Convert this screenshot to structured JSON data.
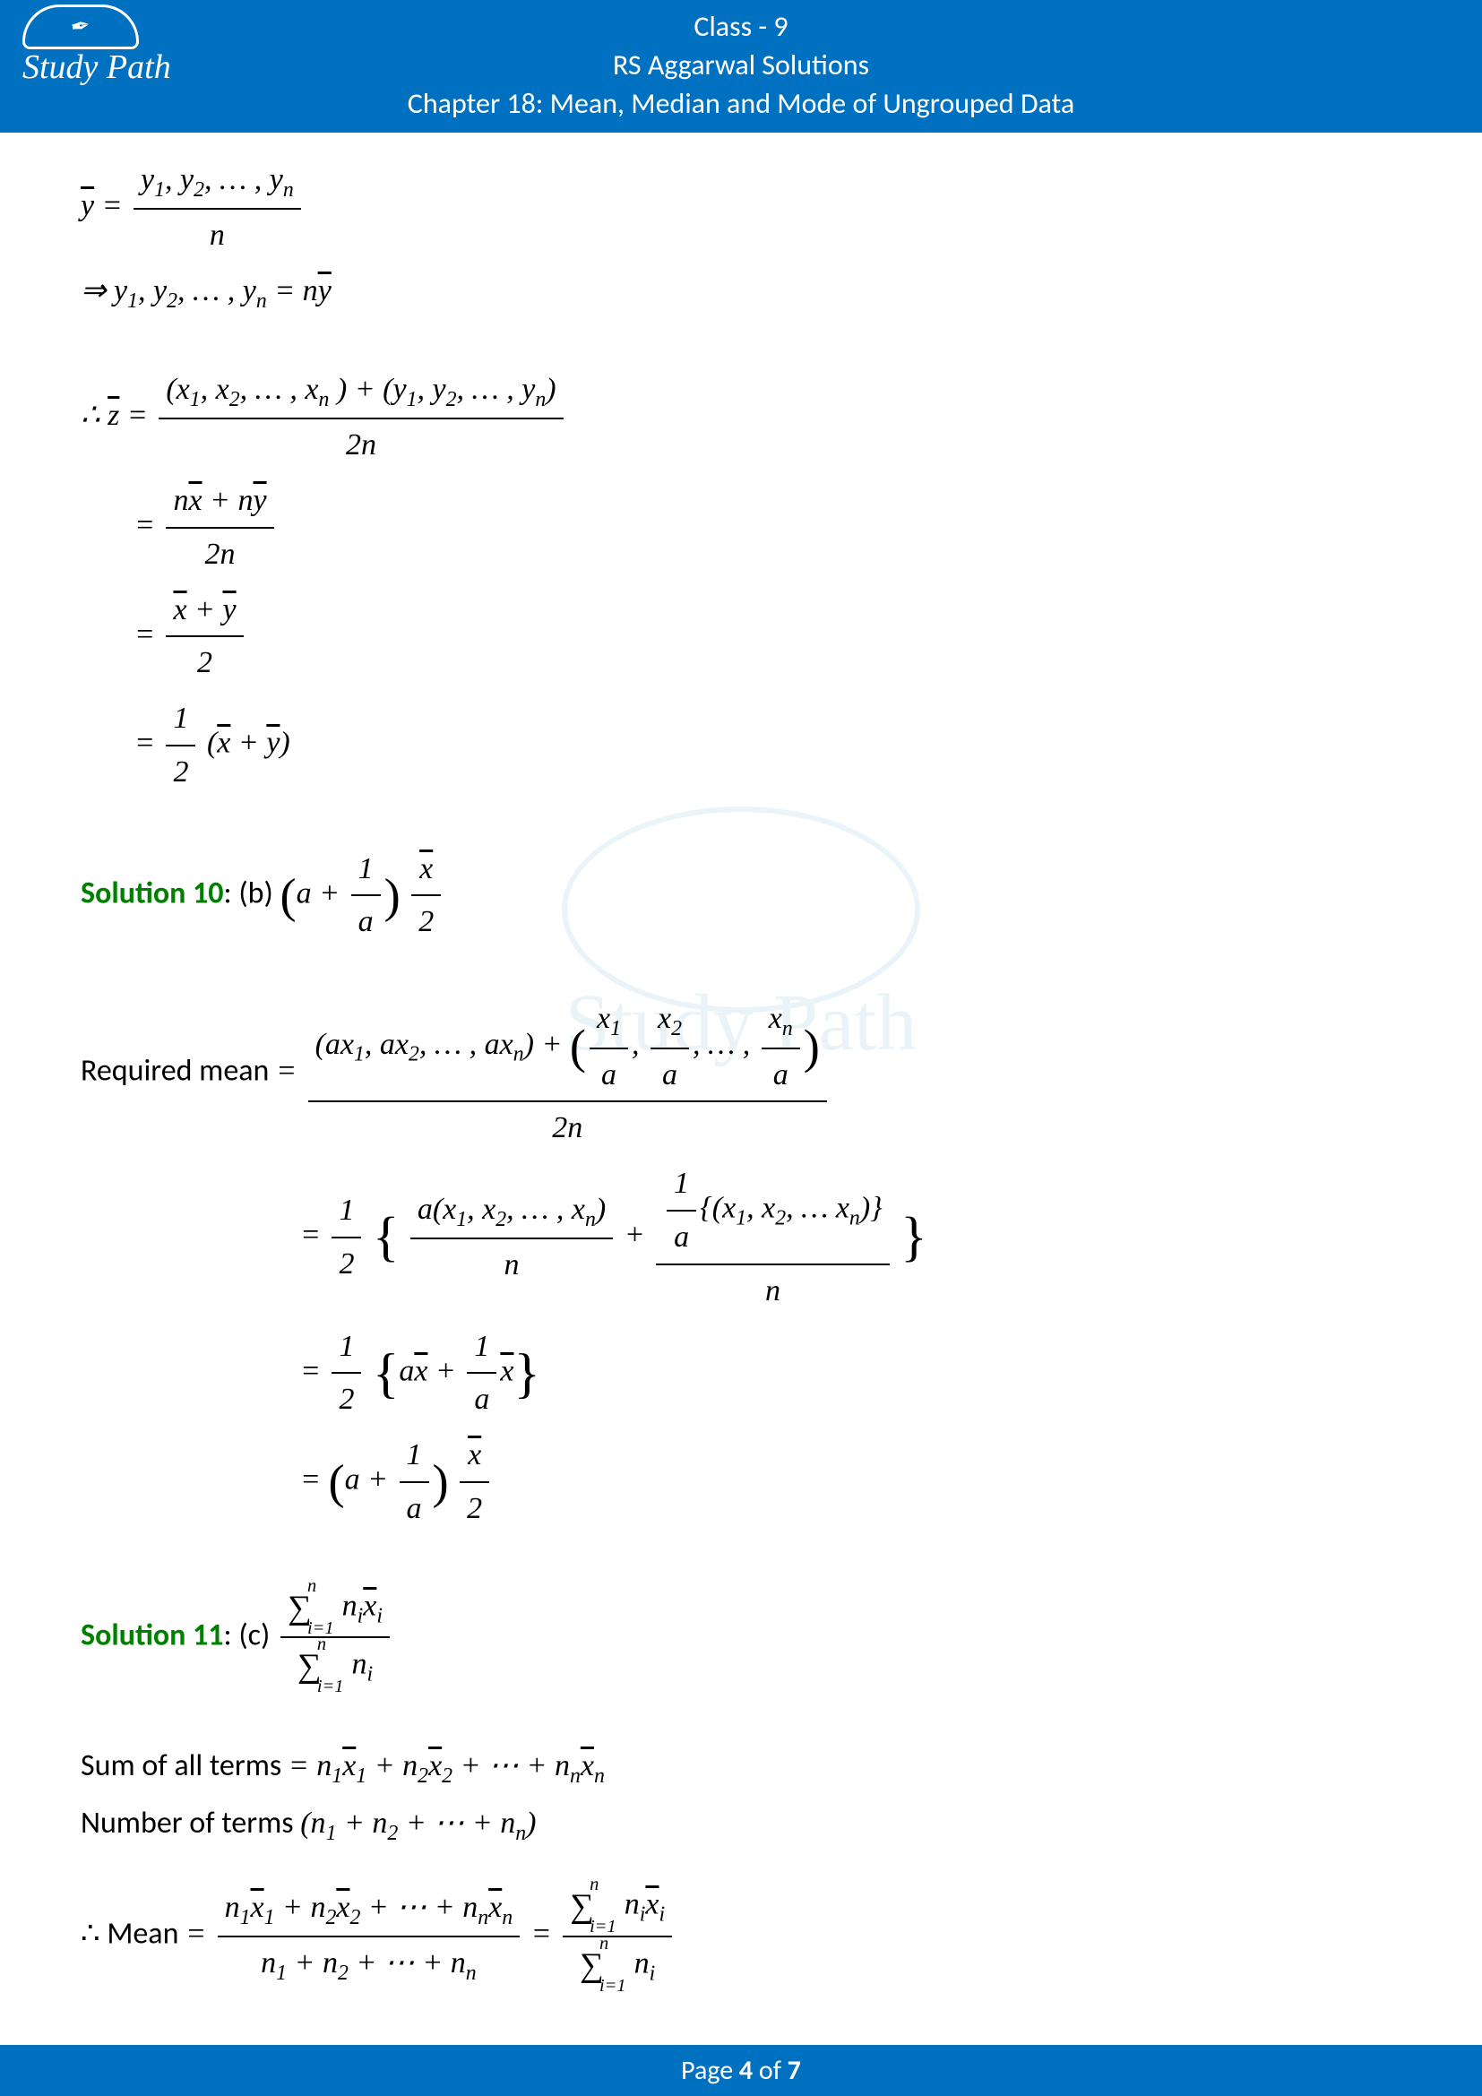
{
  "header": {
    "line1": "Class - 9",
    "line2": "RS Aggarwal Solutions",
    "line3": "Chapter 18: Mean, Median and Mode of Ungrouped Data"
  },
  "logo": {
    "text": "Study Path",
    "icon": "✒"
  },
  "watermark": {
    "text": "Study Path"
  },
  "footer": {
    "prefix": "Page ",
    "current": "4",
    "middle": " of ",
    "total": "7"
  },
  "solutions": {
    "s10": {
      "label": "Solution 10",
      "option": ": (b) "
    },
    "s11": {
      "label": "Solution 11",
      "option": ": (c) "
    }
  },
  "text": {
    "required_mean": "Required mean ",
    "sum_terms": "Sum of all terms ",
    "num_terms": "Number of terms ",
    "therefore_mean": "∴ Mean "
  },
  "colors": {
    "header_bg": "#0070c0",
    "header_text": "#ffffff",
    "solution_label": "#008000",
    "body_text": "#000000",
    "background": "#ffffff",
    "watermark": "#5aa8c8"
  }
}
